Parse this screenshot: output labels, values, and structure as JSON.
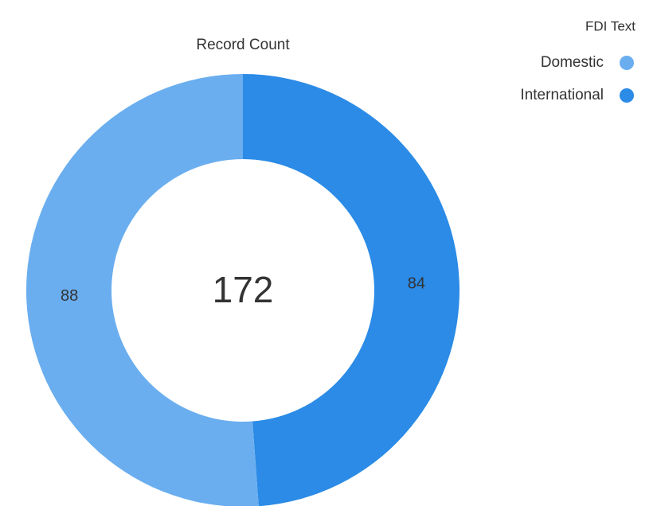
{
  "chart_data": {
    "type": "donut",
    "title": "Record Count",
    "total": 172,
    "categories": [
      "Domestic",
      "International"
    ],
    "values": [
      88,
      84
    ],
    "colors": [
      "#6aaeef",
      "#2b8be6"
    ],
    "legend_title": "FDI Text",
    "legend": "top-right"
  }
}
